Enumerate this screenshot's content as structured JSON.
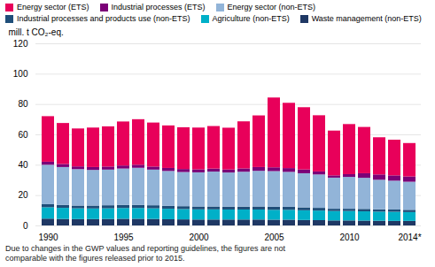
{
  "chart_data": {
    "type": "bar",
    "stacked": true,
    "categories": [
      "1990",
      null,
      null,
      null,
      null,
      "1995",
      null,
      null,
      null,
      null,
      "2000",
      null,
      null,
      null,
      null,
      "2005",
      null,
      null,
      null,
      null,
      "2010",
      null,
      null,
      null,
      "2014*"
    ],
    "series": [
      {
        "name": "Waste management (non-ETS)",
        "color": "#1f3864",
        "values": [
          4.5,
          4.3,
          4.2,
          4.2,
          4.3,
          4.4,
          4.4,
          4.3,
          4.1,
          4.0,
          3.9,
          3.9,
          3.9,
          3.9,
          3.9,
          3.8,
          3.8,
          3.6,
          3.5,
          3.3,
          3.3,
          3.2,
          3.1,
          3.0,
          3.0
        ]
      },
      {
        "name": "Agriculture (non-ETS)",
        "color": "#00b0c8",
        "values": [
          7.5,
          7.3,
          7.1,
          7.0,
          7.0,
          7.1,
          7.1,
          7.0,
          6.9,
          6.8,
          6.7,
          6.7,
          6.6,
          6.6,
          6.6,
          6.5,
          6.5,
          6.4,
          6.3,
          6.2,
          6.2,
          6.1,
          6.0,
          6.0,
          5.8
        ]
      },
      {
        "name": "Industrial processes and products use (non-ETS)",
        "color": "#1f4e79",
        "values": [
          2.0,
          1.9,
          1.8,
          1.9,
          2.0,
          2.0,
          2.0,
          2.0,
          1.9,
          1.9,
          1.9,
          1.9,
          1.9,
          1.9,
          2.0,
          2.0,
          2.0,
          1.9,
          1.8,
          1.5,
          1.5,
          1.6,
          1.5,
          1.5,
          1.5
        ]
      },
      {
        "name": "Energy sector (non-ETS)",
        "color": "#92b4d8",
        "values": [
          26.0,
          25.0,
          24.0,
          23.5,
          23.5,
          24.0,
          24.5,
          23.5,
          23.0,
          22.5,
          22.5,
          23.0,
          22.5,
          23.0,
          23.5,
          23.5,
          23.0,
          22.5,
          22.0,
          20.5,
          21.0,
          20.5,
          19.5,
          19.0,
          18.5
        ]
      },
      {
        "name": "Industrial processes (ETS)",
        "color": "#7b0077",
        "values": [
          2.0,
          2.0,
          1.8,
          1.9,
          2.0,
          2.0,
          2.0,
          2.0,
          2.0,
          2.0,
          2.0,
          2.0,
          2.0,
          2.2,
          2.5,
          2.5,
          2.5,
          2.5,
          2.0,
          1.5,
          1.8,
          3.0,
          3.5,
          3.5,
          3.5
        ]
      },
      {
        "name": "Energy sector (ETS)",
        "color": "#e8005a",
        "values": [
          30.0,
          27.0,
          25.0,
          26.0,
          26.5,
          29.0,
          30.0,
          29.0,
          28.0,
          27.5,
          27.5,
          28.0,
          27.5,
          31.0,
          34.0,
          46.0,
          43.0,
          41.0,
          37.0,
          29.5,
          33.0,
          30.5,
          24.5,
          23.5,
          22.0
        ]
      }
    ],
    "ylabel": "mill. t CO₂-eq.",
    "ylim": [
      0,
      120
    ],
    "yticks": [
      0,
      20,
      40,
      60,
      80,
      100,
      120
    ],
    "grid": true,
    "legend": "top",
    "caption": "Due to changes in the GWP values and reporting guidelines, the figures are not\ncomparable with the figures released prior to 2015."
  }
}
